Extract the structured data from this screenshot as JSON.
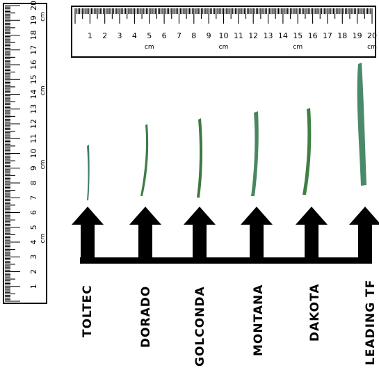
{
  "horizontal_ruler": {
    "numbers": [
      "1",
      "2",
      "3",
      "4",
      "5",
      "6",
      "7",
      "8",
      "9",
      "10",
      "11",
      "12",
      "13",
      "14",
      "15",
      "16",
      "17",
      "18",
      "19",
      "20"
    ],
    "unit_marks": [
      {
        "after": "5",
        "text": "cm"
      },
      {
        "after": "10",
        "text": "cm"
      },
      {
        "after": "15",
        "text": "cm"
      },
      {
        "after": "20",
        "text": "cm"
      }
    ]
  },
  "vertical_ruler": {
    "numbers": [
      "1",
      "2",
      "3",
      "4",
      "5",
      "6",
      "7",
      "8",
      "9",
      "10",
      "11",
      "12",
      "13",
      "14",
      "15",
      "16",
      "17",
      "18",
      "19",
      "20"
    ],
    "unit_marks": [
      {
        "after": "5",
        "text": "cm"
      },
      {
        "after": "10",
        "text": "cm"
      },
      {
        "after": "15",
        "text": "cm"
      },
      {
        "after": "20",
        "text": "cm"
      }
    ]
  },
  "cultivars": [
    {
      "label": "TOLTEC"
    },
    {
      "label": "DORADO"
    },
    {
      "label": "GOLCONDA"
    },
    {
      "label": "MONTANA"
    },
    {
      "label": "DAKOTA"
    },
    {
      "label": "LEADING TF"
    }
  ],
  "colors": {
    "blade_green": "#3f7d45",
    "blade_light": "#8fb98a",
    "arrow": "#000000",
    "ruler_line": "#000000"
  }
}
